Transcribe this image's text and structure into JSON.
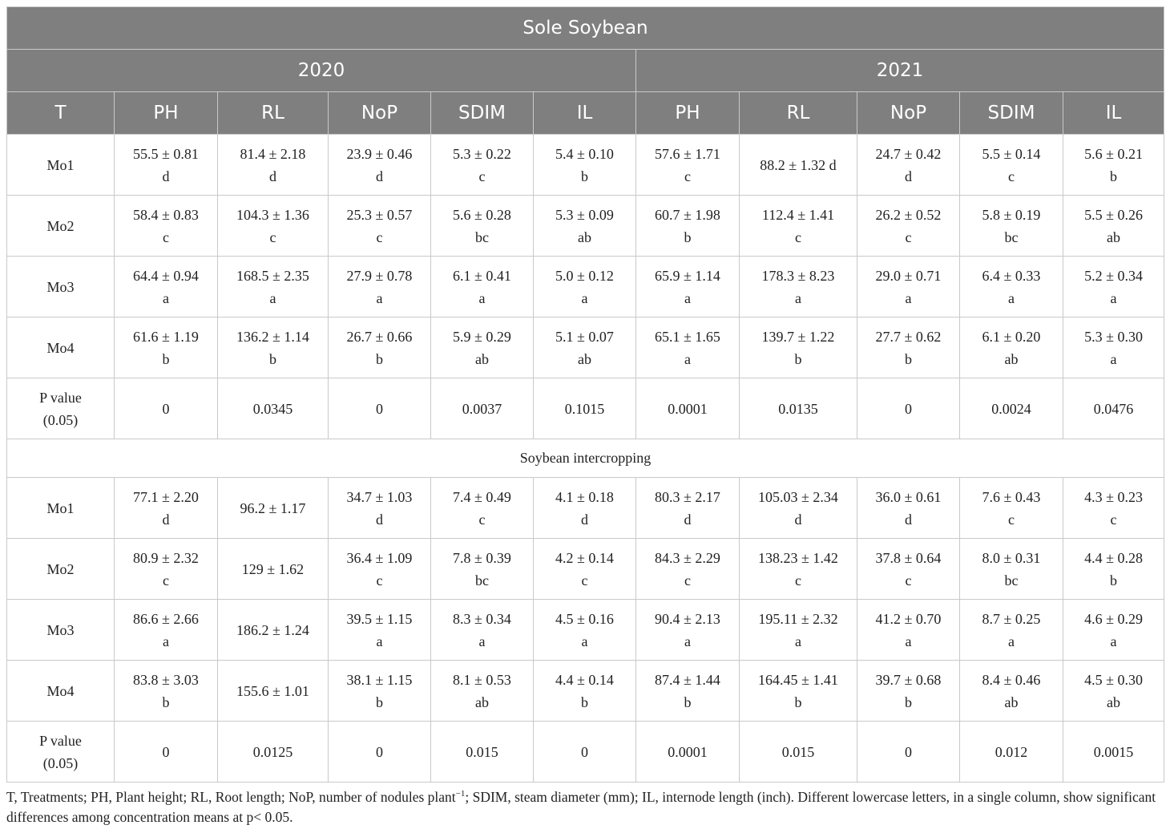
{
  "table": {
    "title": "Sole Soybean",
    "years": [
      "2020",
      "2021"
    ],
    "columns": [
      "T",
      "PH",
      "RL",
      "NoP",
      "SDIM",
      "IL",
      "PH",
      "RL",
      "NoP",
      "SDIM",
      "IL"
    ],
    "section_sole": {
      "rows": [
        {
          "t": "Mo1",
          "cells": [
            [
              "55.5 ± 0.81",
              "d"
            ],
            [
              "81.4 ± 2.18",
              "d"
            ],
            [
              "23.9 ± 0.46",
              "d"
            ],
            [
              "5.3 ± 0.22",
              "c"
            ],
            [
              "5.4 ± 0.10",
              "b"
            ],
            [
              "57.6 ± 1.71",
              "c"
            ],
            [
              "88.2 ± 1.32 d"
            ],
            [
              "24.7 ± 0.42",
              "d"
            ],
            [
              "5.5 ± 0.14",
              "c"
            ],
            [
              "5.6 ± 0.21",
              "b"
            ]
          ]
        },
        {
          "t": "Mo2",
          "cells": [
            [
              "58.4 ± 0.83",
              "c"
            ],
            [
              "104.3 ± 1.36",
              "c"
            ],
            [
              "25.3 ± 0.57",
              "c"
            ],
            [
              "5.6 ± 0.28",
              "bc"
            ],
            [
              "5.3 ± 0.09",
              "ab"
            ],
            [
              "60.7 ± 1.98",
              "b"
            ],
            [
              "112.4 ± 1.41",
              "c"
            ],
            [
              "26.2 ± 0.52",
              "c"
            ],
            [
              "5.8 ± 0.19",
              "bc"
            ],
            [
              "5.5 ± 0.26",
              "ab"
            ]
          ]
        },
        {
          "t": "Mo3",
          "cells": [
            [
              "64.4 ± 0.94",
              "a"
            ],
            [
              "168.5 ± 2.35",
              "a"
            ],
            [
              "27.9 ± 0.78",
              "a"
            ],
            [
              "6.1 ± 0.41",
              "a"
            ],
            [
              "5.0 ± 0.12",
              "a"
            ],
            [
              "65.9 ± 1.14",
              "a"
            ],
            [
              "178.3 ± 8.23",
              "a"
            ],
            [
              "29.0 ± 0.71",
              "a"
            ],
            [
              "6.4 ± 0.33",
              "a"
            ],
            [
              "5.2 ± 0.34",
              "a"
            ]
          ]
        },
        {
          "t": "Mo4",
          "cells": [
            [
              "61.6 ± 1.19",
              "b"
            ],
            [
              "136.2 ± 1.14",
              "b"
            ],
            [
              "26.7 ± 0.66",
              "b"
            ],
            [
              "5.9 ± 0.29",
              "ab"
            ],
            [
              "5.1 ± 0.07",
              "ab"
            ],
            [
              "65.1 ± 1.65",
              "a"
            ],
            [
              "139.7 ± 1.22",
              "b"
            ],
            [
              "27.7 ± 0.62",
              "b"
            ],
            [
              "6.1 ± 0.20",
              "ab"
            ],
            [
              "5.3 ± 0.30",
              "a"
            ]
          ]
        },
        {
          "t": "P value",
          "t2": "(0.05)",
          "cells": [
            [
              "0"
            ],
            [
              "0.0345"
            ],
            [
              "0"
            ],
            [
              "0.0037"
            ],
            [
              "0.1015"
            ],
            [
              "0.0001"
            ],
            [
              "0.0135"
            ],
            [
              "0"
            ],
            [
              "0.0024"
            ],
            [
              "0.0476"
            ]
          ]
        }
      ]
    },
    "section_intercrop": {
      "label": "Soybean intercropping",
      "rows": [
        {
          "t": "Mo1",
          "cells": [
            [
              "77.1 ± 2.20",
              "d"
            ],
            [
              "96.2 ± 1.17"
            ],
            [
              "34.7 ± 1.03",
              "d"
            ],
            [
              "7.4 ± 0.49",
              "c"
            ],
            [
              "4.1 ± 0.18",
              "d"
            ],
            [
              "80.3 ± 2.17",
              "d"
            ],
            [
              "105.03 ± 2.34",
              "d"
            ],
            [
              "36.0 ± 0.61",
              "d"
            ],
            [
              "7.6 ± 0.43",
              "c"
            ],
            [
              "4.3 ± 0.23",
              "c"
            ]
          ]
        },
        {
          "t": "Mo2",
          "cells": [
            [
              "80.9 ± 2.32",
              "c"
            ],
            [
              "129 ± 1.62"
            ],
            [
              "36.4 ± 1.09",
              "c"
            ],
            [
              "7.8 ± 0.39",
              "bc"
            ],
            [
              "4.2 ± 0.14",
              "c"
            ],
            [
              "84.3 ± 2.29",
              "c"
            ],
            [
              "138.23 ± 1.42",
              "c"
            ],
            [
              "37.8 ± 0.64",
              "c"
            ],
            [
              "8.0 ± 0.31",
              "bc"
            ],
            [
              "4.4 ± 0.28",
              "b"
            ]
          ]
        },
        {
          "t": "Mo3",
          "cells": [
            [
              "86.6 ± 2.66",
              "a"
            ],
            [
              "186.2 ± 1.24"
            ],
            [
              "39.5 ± 1.15",
              "a"
            ],
            [
              "8.3 ± 0.34",
              "a"
            ],
            [
              "4.5 ± 0.16",
              "a"
            ],
            [
              "90.4 ± 2.13",
              "a"
            ],
            [
              "195.11 ± 2.32",
              "a"
            ],
            [
              "41.2 ± 0.70",
              "a"
            ],
            [
              "8.7 ± 0.25",
              "a"
            ],
            [
              "4.6 ± 0.29",
              "a"
            ]
          ]
        },
        {
          "t": "Mo4",
          "cells": [
            [
              "83.8 ± 3.03",
              "b"
            ],
            [
              "155.6 ± 1.01"
            ],
            [
              "38.1 ± 1.15",
              "b"
            ],
            [
              "8.1 ± 0.53",
              "ab"
            ],
            [
              "4.4 ± 0.14",
              "b"
            ],
            [
              "87.4 ± 1.44",
              "b"
            ],
            [
              "164.45 ± 1.41",
              "b"
            ],
            [
              "39.7 ± 0.68",
              "b"
            ],
            [
              "8.4 ± 0.46",
              "ab"
            ],
            [
              "4.5 ± 0.30",
              "ab"
            ]
          ]
        },
        {
          "t": "P value",
          "t2": "(0.05)",
          "cells": [
            [
              "0"
            ],
            [
              "0.0125"
            ],
            [
              "0"
            ],
            [
              "0.015"
            ],
            [
              "0"
            ],
            [
              "0.0001"
            ],
            [
              "0.015"
            ],
            [
              "0"
            ],
            [
              "0.012"
            ],
            [
              "0.0015"
            ]
          ]
        }
      ]
    }
  },
  "footnote": {
    "part1": "T, Treatments; PH, Plant height; RL, Root length; NoP, number of nodules plant",
    "sup": "−1",
    "part2": "; SDIM, steam diameter (mm); IL, internode length (inch). Different lowercase letters, in a single column, show significant differences among concentration means at p< 0.05."
  },
  "colors": {
    "header_bg": "#7f7f7f",
    "header_text": "#ffffff",
    "border": "#c9c9c9",
    "body_text": "#222222"
  }
}
